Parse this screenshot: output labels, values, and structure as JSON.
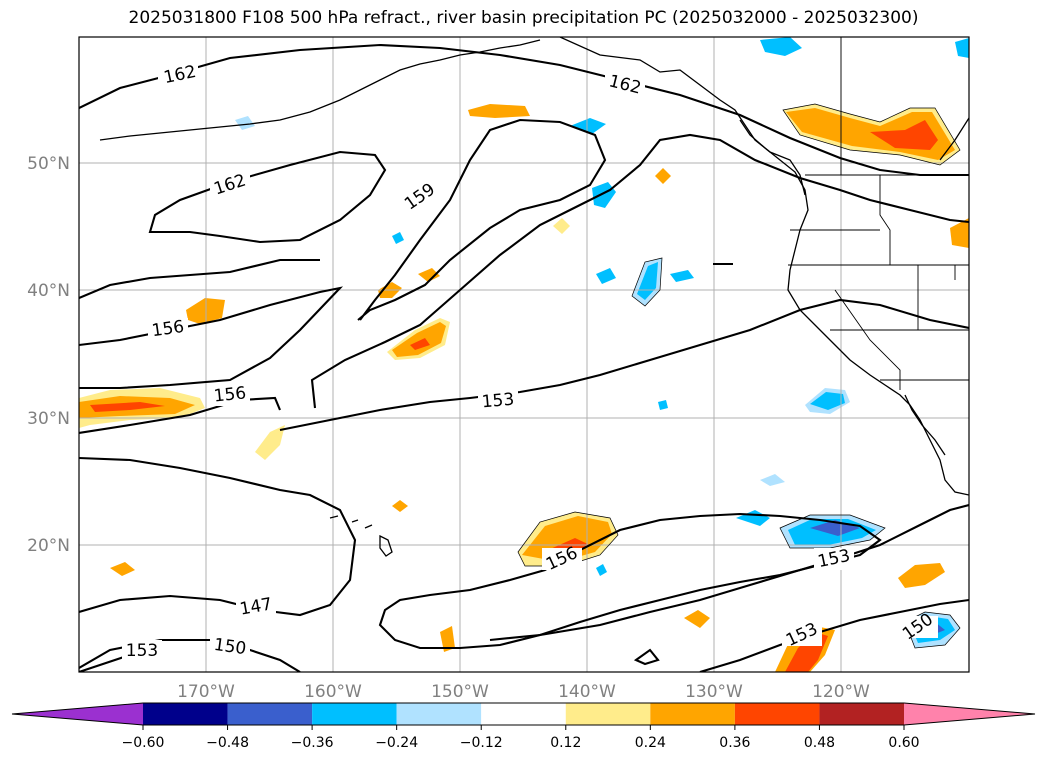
{
  "title": "2025031800 F108 500 hPa refract., river basin precipitation PC (2025032000 - 2025032300)",
  "lat_labels": [
    "50°N",
    "40°N",
    "30°N",
    "20°N"
  ],
  "lon_labels": [
    "170°W",
    "160°W",
    "150°W",
    "140°W",
    "130°W",
    "120°W"
  ],
  "contour_labels": [
    {
      "text": "162"
    },
    {
      "text": "162"
    },
    {
      "text": "162"
    },
    {
      "text": "159"
    },
    {
      "text": "156"
    },
    {
      "text": "156"
    },
    {
      "text": "153"
    },
    {
      "text": "156"
    },
    {
      "text": "153"
    },
    {
      "text": "147"
    },
    {
      "text": "150"
    },
    {
      "text": "153"
    },
    {
      "text": "153"
    },
    {
      "text": "150"
    }
  ],
  "colorbar": {
    "ticks": [
      "−0.60",
      "−0.48",
      "−0.36",
      "−0.24",
      "−0.12",
      "0.12",
      "0.24",
      "0.36",
      "0.48",
      "0.60"
    ],
    "colors": [
      "#9b30d0",
      "#00008b",
      "#3a5fcd",
      "#00bfff",
      "#b0e2ff",
      "#ffffff",
      "#ffec8b",
      "#ffa500",
      "#ff4500",
      "#b22222",
      "#ff82ab"
    ]
  }
}
